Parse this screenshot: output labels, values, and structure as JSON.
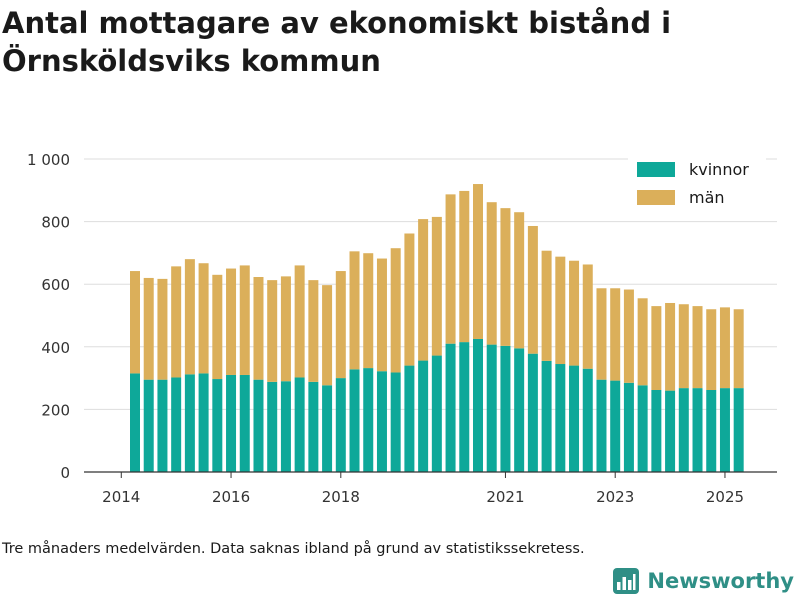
{
  "title": "Antal mottagare av ekonomiskt bistånd i Örnsköldsviks kommun",
  "footnote": "Tre månaders medelvärden. Data saknas ibland på grund av statistikssekretess.",
  "brand": {
    "name": "Newsworthy",
    "icon": "bar-chart-logo-icon",
    "color": "#2f8f86"
  },
  "chart_data": {
    "type": "bar",
    "stacked": true,
    "title": "Antal mottagare av ekonomiskt bistånd i Örnsköldsviks kommun",
    "xlabel": "",
    "ylabel": "",
    "ylim": [
      0,
      1000
    ],
    "yticks": [
      0,
      200,
      400,
      600,
      800,
      1000
    ],
    "ytick_labels": [
      "0",
      "200",
      "400",
      "600",
      "800",
      "1 000"
    ],
    "xtick_labels": [
      "2014",
      "2016",
      "2018",
      "2021",
      "2023",
      "2025"
    ],
    "xtick_bar_positions": [
      -1,
      7,
      15,
      27,
      35,
      43
    ],
    "grid": true,
    "legend_position": "top-right",
    "series": [
      {
        "name": "kvinnor",
        "color": "#0ea899",
        "values": [
          315,
          295,
          295,
          302,
          312,
          315,
          297,
          310,
          310,
          295,
          288,
          290,
          302,
          288,
          277,
          300,
          328,
          332,
          322,
          318,
          340,
          356,
          372,
          410,
          415,
          425,
          407,
          403,
          395,
          378,
          355,
          345,
          340,
          330,
          295,
          292,
          285,
          277,
          262,
          260,
          268,
          268,
          262,
          268,
          268
        ]
      },
      {
        "name": "män",
        "color": "#dbaf5a",
        "values": [
          327,
          325,
          322,
          355,
          368,
          352,
          333,
          340,
          350,
          328,
          325,
          335,
          358,
          325,
          320,
          342,
          377,
          367,
          360,
          397,
          422,
          452,
          443,
          477,
          483,
          495,
          455,
          440,
          435,
          408,
          352,
          343,
          335,
          333,
          292,
          295,
          298,
          278,
          268,
          280,
          268,
          262,
          258,
          258,
          252
        ]
      }
    ]
  }
}
